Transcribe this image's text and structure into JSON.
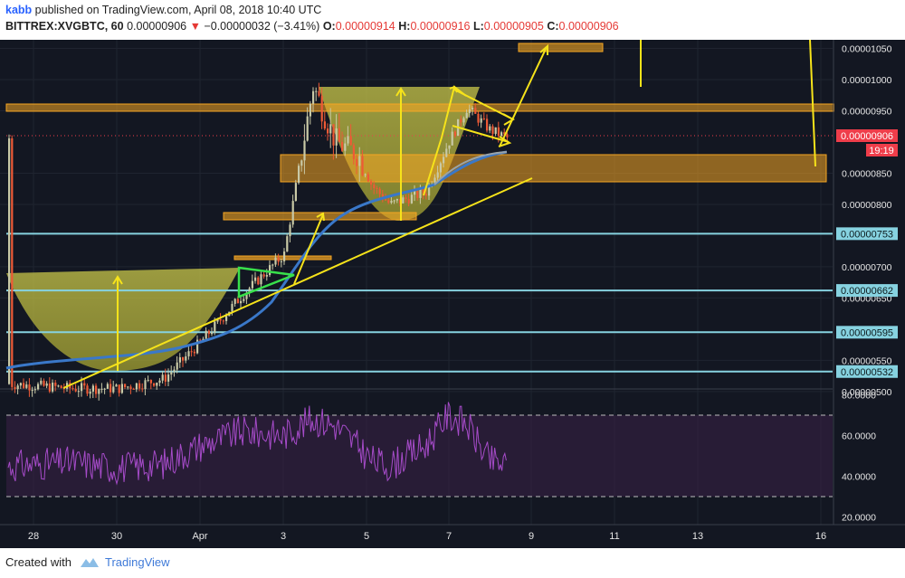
{
  "header": {
    "author": "kabb",
    "published_text": "published on TradingView.com, April 08, 2018 10:40 UTC",
    "symbol": "BITTREX:XVGBTC, 60",
    "last_price": "0.00000906",
    "change": "−0.00000032 (−3.41%)",
    "o_label": "O:",
    "o_value": "0.00000914",
    "h_label": "H:",
    "h_value": "0.00000916",
    "l_label": "L:",
    "l_value": "0.00000905",
    "c_label": "C:",
    "c_value": "0.00000906"
  },
  "footer": {
    "created_with": "Created with",
    "brand": "TradingView"
  },
  "price_axis": {
    "ticks": [
      "0.00001050",
      "0.00001000",
      "0.00000950",
      "0.00000850",
      "0.00000800",
      "0.00000700",
      "0.00000650",
      "0.00000550",
      "0.00000500"
    ],
    "tick_values": [
      1.05e-05,
      1e-05,
      9.5e-06,
      8.5e-06,
      8e-06,
      7e-06,
      6.5e-06,
      5.5e-06,
      5e-06
    ],
    "current_price_label": "0.00000906",
    "countdown": "19:19",
    "level_labels": [
      "0.00000753",
      "0.00000662",
      "0.00000595",
      "0.00000532"
    ],
    "level_values": [
      7.53e-06,
      6.62e-06,
      5.95e-06,
      5.32e-06
    ]
  },
  "rsi_axis": {
    "ticks": [
      "80.0000",
      "60.0000",
      "40.0000",
      "20.0000"
    ],
    "tick_values": [
      80,
      60,
      40,
      20
    ],
    "bands": [
      70,
      30
    ]
  },
  "time_axis": {
    "labels": [
      "28",
      "30",
      "Apr",
      "3",
      "5",
      "7",
      "9",
      "11",
      "13",
      "16"
    ]
  },
  "colors": {
    "background": "#131722",
    "header_bg": "#ffffff",
    "up_candle": "#c9c9a6",
    "down_candle": "#ee5a36",
    "level_line": "#86d2e0",
    "zone_fill": "#f5a623",
    "trend_line": "#f6e31a",
    "triangle": "#38e04b",
    "moving_average": "#3a78c9",
    "rsi_line": "#a64bc9",
    "price_label_bg": "#ef3d4a"
  },
  "chart_data": {
    "type": "candlestick",
    "title": "BITTREX:XVGBTC, 60",
    "x": [
      "28",
      "29",
      "30",
      "31",
      "Apr",
      "2",
      "3",
      "3.5",
      "4",
      "4.5",
      "5",
      "5.5",
      "6",
      "6.5",
      "7",
      "7.5",
      "8",
      "8.5"
    ],
    "ohlc_daily_approx": [
      {
        "x": "28",
        "close": 5.12e-06
      },
      {
        "x": "29",
        "close": 5.05e-06
      },
      {
        "x": "30",
        "close": 5.05e-06
      },
      {
        "x": "31",
        "close": 5.2e-06
      },
      {
        "x": "Apr",
        "close": 5.8e-06
      },
      {
        "x": "2",
        "close": 6.55e-06
      },
      {
        "x": "3",
        "close": 7.2e-06
      },
      {
        "x": "3.5",
        "close": 9.9e-06
      },
      {
        "x": "4",
        "close": 9e-06
      },
      {
        "x": "4.5",
        "close": 8.8e-06
      },
      {
        "x": "5",
        "close": 8.3e-06
      },
      {
        "x": "5.5",
        "close": 8e-06
      },
      {
        "x": "6",
        "close": 8.1e-06
      },
      {
        "x": "6.5",
        "close": 8.2e-06
      },
      {
        "x": "7",
        "close": 9e-06
      },
      {
        "x": "7.5",
        "close": 9.55e-06
      },
      {
        "x": "8",
        "close": 9.2e-06
      },
      {
        "x": "8.5",
        "close": 9.06e-06
      }
    ],
    "support_resistance_levels": [
      7.53e-06,
      6.62e-06,
      5.95e-06,
      5.32e-06
    ],
    "rsi_series_approx": [
      45,
      47,
      44,
      46,
      55,
      62,
      60,
      68,
      65,
      55,
      48,
      45,
      50,
      55,
      70,
      66,
      48,
      45
    ],
    "rsi_ylim": [
      10,
      100
    ],
    "ylim": [
      4.7e-06,
      1.08e-05
    ],
    "grid": true
  }
}
